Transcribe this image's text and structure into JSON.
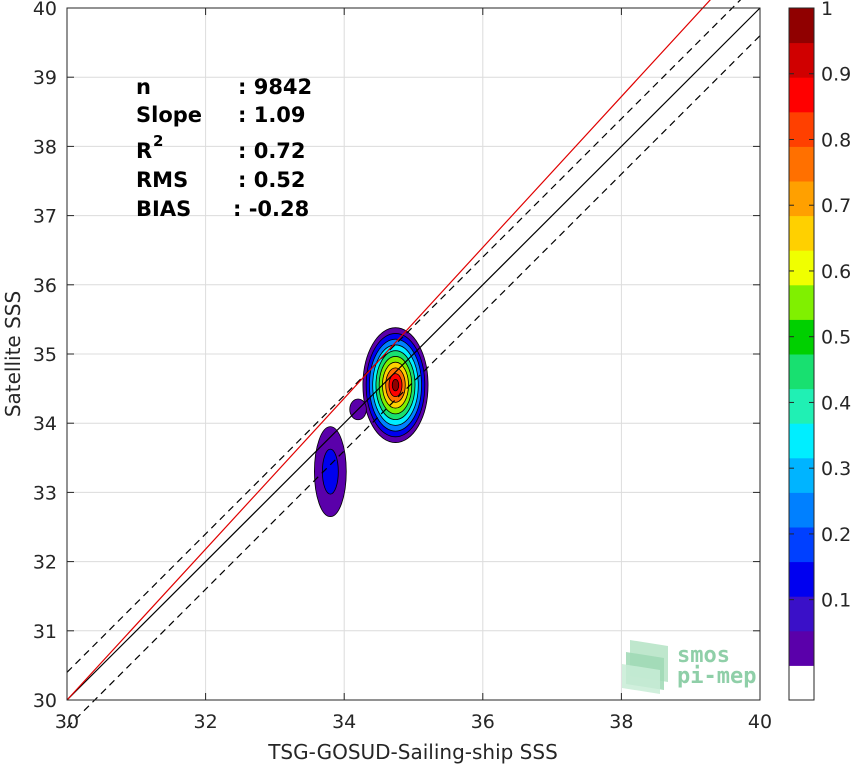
{
  "chart_data": {
    "type": "contour",
    "xlabel": "TSG-GOSUD-Sailing-ship SSS",
    "ylabel": "Satellite SSS",
    "xlim": [
      30,
      40
    ],
    "ylim": [
      30,
      40
    ],
    "xticks": [
      "30",
      "32",
      "34",
      "36",
      "38",
      "40"
    ],
    "yticks": [
      "30",
      "31",
      "32",
      "33",
      "34",
      "35",
      "36",
      "37",
      "38",
      "39",
      "40"
    ],
    "grid": true,
    "stats": [
      {
        "label": "n",
        "value": ": 9842"
      },
      {
        "label": "Slope",
        "value": ": 1.09"
      },
      {
        "label": "R",
        "sup": "2",
        "value": ": 0.72"
      },
      {
        "label": "RMS",
        "value": ": 0.52"
      },
      {
        "label": "BIAS",
        "value": ": -0.28"
      }
    ],
    "lines": [
      {
        "kind": "identity",
        "color": "#000000",
        "dash": false,
        "points": [
          [
            30,
            30
          ],
          [
            40,
            40
          ]
        ]
      },
      {
        "kind": "upper-bound",
        "color": "#000000",
        "dash": true,
        "points": [
          [
            30,
            30.4
          ],
          [
            40,
            40.4
          ]
        ]
      },
      {
        "kind": "lower-bound",
        "color": "#000000",
        "dash": true,
        "points": [
          [
            30,
            29.6
          ],
          [
            40,
            39.6
          ]
        ]
      },
      {
        "kind": "fit",
        "color": "#e00000",
        "dash": false,
        "points": [
          [
            30,
            30.0
          ],
          [
            40,
            40.9
          ]
        ]
      }
    ],
    "blobs": [
      {
        "cx": 34.74,
        "cy": 34.55,
        "rx": 0.47,
        "ry": 0.83,
        "levels": 10
      },
      {
        "cx": 33.8,
        "cy": 33.3,
        "rx": 0.23,
        "ry": 0.65,
        "levels": 2
      },
      {
        "cx": 34.2,
        "cy": 34.2,
        "rx": 0.12,
        "ry": 0.15,
        "levels": 1
      }
    ],
    "colorbar": {
      "ticks": [
        "0.1",
        "0.2",
        "0.3",
        "0.4",
        "0.5",
        "0.6",
        "0.7",
        "0.8",
        "0.9",
        "1"
      ],
      "colors": [
        "#ffffff",
        "#5a00aa",
        "#3a10c8",
        "#0000f0",
        "#0040ff",
        "#0080ff",
        "#00b4ff",
        "#00eeff",
        "#20f0b4",
        "#18e070",
        "#00d000",
        "#80f000",
        "#f0ff00",
        "#ffd000",
        "#ffa000",
        "#ff7000",
        "#ff4000",
        "#ff0000",
        "#d00000",
        "#900000"
      ]
    }
  },
  "logo": {
    "line1": "smos",
    "line2": "pi-mep"
  }
}
